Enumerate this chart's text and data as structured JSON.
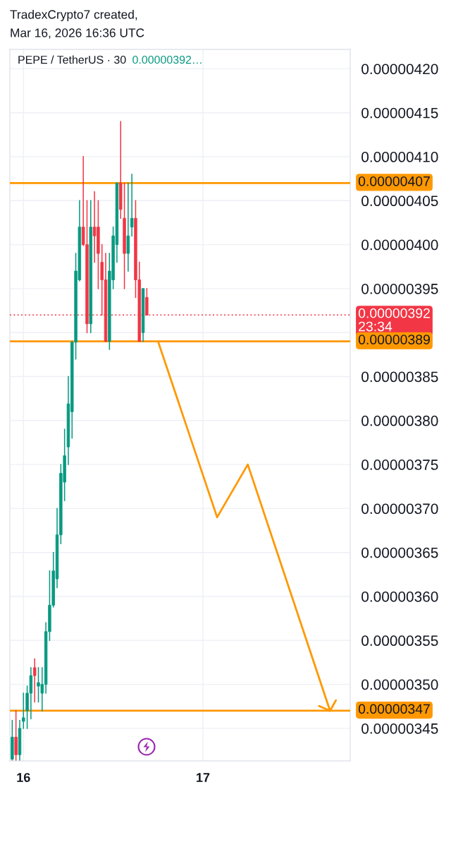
{
  "chart_data": {
    "type": "candlestick",
    "title": "PEPE / TetherUS · 30",
    "subtitle": "0.00000392…",
    "annotations": [
      "TradexCrypto7 created,",
      "Mar 16, 2026 16:36 UTC"
    ],
    "x": [
      "2026-03-15T22:30",
      "2026-03-15T23:00",
      "2026-03-15T23:30",
      "2026-03-16T00:00",
      "2026-03-16T00:30",
      "2026-03-16T01:00",
      "2026-03-16T01:30",
      "2026-03-16T02:00",
      "2026-03-16T02:30",
      "2026-03-16T03:00",
      "2026-03-16T03:30",
      "2026-03-16T04:00",
      "2026-03-16T04:30",
      "2026-03-16T05:00",
      "2026-03-16T05:30",
      "2026-03-16T06:00",
      "2026-03-16T06:30",
      "2026-03-16T07:00",
      "2026-03-16T07:30",
      "2026-03-16T08:00",
      "2026-03-16T08:30",
      "2026-03-16T09:00",
      "2026-03-16T09:30",
      "2026-03-16T10:00",
      "2026-03-16T10:30",
      "2026-03-16T11:00",
      "2026-03-16T11:30",
      "2026-03-16T12:00",
      "2026-03-16T12:30",
      "2026-03-16T13:00",
      "2026-03-16T13:30",
      "2026-03-16T14:00",
      "2026-03-16T14:30",
      "2026-03-16T15:00",
      "2026-03-16T15:30",
      "2026-03-16T16:00",
      "2026-03-16T16:30"
    ],
    "ohlc": [
      [
        3.415e-06,
        3.459e-06,
        3.414e-06,
        3.44e-06
      ],
      [
        3.44e-06,
        3.47e-06,
        3.414e-06,
        3.42e-06
      ],
      [
        3.42e-06,
        3.459e-06,
        3.414e-06,
        3.45e-06
      ],
      [
        3.458e-06,
        3.49e-06,
        3.45e-06,
        3.462e-06
      ],
      [
        3.47e-06,
        3.498e-06,
        3.45e-06,
        3.49e-06
      ],
      [
        3.49e-06,
        3.519e-06,
        3.461e-06,
        3.51e-06
      ],
      [
        3.519e-06,
        3.529e-06,
        3.48e-06,
        3.51e-06
      ],
      [
        3.498e-06,
        3.519e-06,
        3.48e-06,
        3.502e-06
      ],
      [
        3.49e-06,
        3.519e-06,
        3.47e-06,
        3.5e-06
      ],
      [
        3.5e-06,
        3.57e-06,
        3.49e-06,
        3.56e-06
      ],
      [
        3.56e-06,
        3.629e-06,
        3.55e-06,
        3.59e-06
      ],
      [
        3.59e-06,
        3.65e-06,
        3.588e-06,
        3.629e-06
      ],
      [
        3.62e-06,
        3.7e-06,
        3.61e-06,
        3.67e-06
      ],
      [
        3.67e-06,
        3.75e-06,
        3.66e-06,
        3.74e-06
      ],
      [
        3.73e-06,
        3.79e-06,
        3.709e-06,
        3.76e-06
      ],
      [
        3.77e-06,
        3.85e-06,
        3.75e-06,
        3.819e-06
      ],
      [
        3.81e-06,
        3.89e-06,
        3.78e-06,
        3.889e-06
      ],
      [
        3.889e-06,
        3.99e-06,
        3.87e-06,
        3.97e-06
      ],
      [
        3.96e-06,
        4.05e-06,
        3.959e-06,
        4.02e-06
      ],
      [
        4.02e-06,
        4.1e-06,
        3.999e-06,
        4e-06
      ],
      [
        4e-06,
        4.05e-06,
        3.9e-06,
        3.91e-06
      ],
      [
        3.91e-06,
        4.05e-06,
        3.9e-06,
        4.02e-06
      ],
      [
        4.02e-06,
        4.06e-06,
        3.98e-06,
        4.01e-06
      ],
      [
        4.02e-06,
        4.05e-06,
        3.95e-06,
        3.99e-06
      ],
      [
        3.98e-06,
        4e-06,
        3.92e-06,
        3.96e-06
      ],
      [
        3.96e-06,
        3.99e-06,
        3.89e-06,
        3.89e-06
      ],
      [
        3.89e-06,
        3.99e-06,
        3.881e-06,
        3.97e-06
      ],
      [
        3.96e-06,
        4.02e-06,
        3.95e-06,
        4.01e-06
      ],
      [
        4e-06,
        4.07e-06,
        3.98e-06,
        4.07e-06
      ],
      [
        4.07e-06,
        4.14e-06,
        4.03e-06,
        4.04e-06
      ],
      [
        4.03e-06,
        4.07e-06,
        3.95e-06,
        3.99e-06
      ],
      [
        3.99e-06,
        4.07e-06,
        3.97e-06,
        4.01e-06
      ],
      [
        4.02e-06,
        4.08e-06,
        4.01e-06,
        4.03e-06
      ],
      [
        4.03e-06,
        4.05e-06,
        3.94e-06,
        3.96e-06
      ],
      [
        3.96e-06,
        3.98e-06,
        3.89e-06,
        3.89e-06
      ],
      [
        3.9e-06,
        3.95e-06,
        3.89e-06,
        3.95e-06
      ],
      [
        3.94e-06,
        3.95e-06,
        3.92e-06,
        3.92e-06
      ]
    ],
    "colors": [
      "#089981",
      "#f23645",
      "#089981",
      "#089981",
      "#089981",
      "#089981",
      "#f23645",
      "#089981",
      "#089981",
      "#089981",
      "#089981",
      "#089981",
      "#089981",
      "#089981",
      "#089981",
      "#089981",
      "#089981",
      "#089981",
      "#089981",
      "#f23645",
      "#f23645",
      "#089981",
      "#f23645",
      "#f23645",
      "#f23645",
      "#f23645",
      "#089981",
      "#089981",
      "#089981",
      "#f23645",
      "#f23645",
      "#089981",
      "#089981",
      "#f23645",
      "#f23645",
      "#089981",
      "#f23645"
    ],
    "series": [
      {
        "type": "line",
        "color": "#ff9800",
        "x": [
          "2026-03-16T18:00",
          "2026-03-17T01:54",
          "2026-03-17T06:00",
          "2026-03-17T17:00"
        ],
        "values": [
          3.89e-06,
          3.69e-06,
          3.75e-06,
          3.47e-06
        ]
      }
    ],
    "ref_lines": [
      {
        "axis": "y",
        "value": 4.07e-06,
        "label": "0.00000407",
        "color": "#ff9800",
        "line_style": "solid"
      },
      {
        "axis": "y",
        "value": 3.92e-06,
        "label": "0.00000392\n23:34",
        "color": "#f23645",
        "line_style": "dotted"
      },
      {
        "axis": "y",
        "value": 3.89e-06,
        "label": "0.00000389",
        "color": "#ff9800",
        "line_style": "solid"
      },
      {
        "axis": "y",
        "value": 3.47e-06,
        "label": "0.00000347",
        "color": "#ff9800",
        "line_style": "solid"
      }
    ],
    "xlim": [
      "2026-03-15T22:11",
      "2026-03-17T19:42"
    ],
    "xticks": [
      {
        "value": "2026-03-16",
        "label": "16"
      },
      {
        "value": "2026-03-17",
        "label": "17"
      }
    ],
    "ylim": [
      3.413e-06,
      4.222e-06
    ],
    "yticks": [
      {
        "value": 4.2e-06,
        "label": "0.00000420"
      },
      {
        "value": 4.15e-06,
        "label": "0.00000415"
      },
      {
        "value": 4.1e-06,
        "label": "0.00000410"
      },
      {
        "value": 4.05e-06,
        "label": "0.00000405"
      },
      {
        "value": 4e-06,
        "label": "0.00000400"
      },
      {
        "value": 3.95e-06,
        "label": "0.00000395"
      },
      {
        "value": 3.9e-06,
        "label": null
      },
      {
        "value": 3.85e-06,
        "label": "0.00000385"
      },
      {
        "value": 3.8e-06,
        "label": "0.00000380"
      },
      {
        "value": 3.75e-06,
        "label": "0.00000375"
      },
      {
        "value": 3.7e-06,
        "label": "0.00000370"
      },
      {
        "value": 3.65e-06,
        "label": "0.00000365"
      },
      {
        "value": 3.6e-06,
        "label": "0.00000360"
      },
      {
        "value": 3.55e-06,
        "label": "0.00000355"
      },
      {
        "value": 3.5e-06,
        "label": "0.00000350"
      },
      {
        "value": 3.45e-06,
        "label": "0.00000345"
      }
    ],
    "grid": true
  }
}
